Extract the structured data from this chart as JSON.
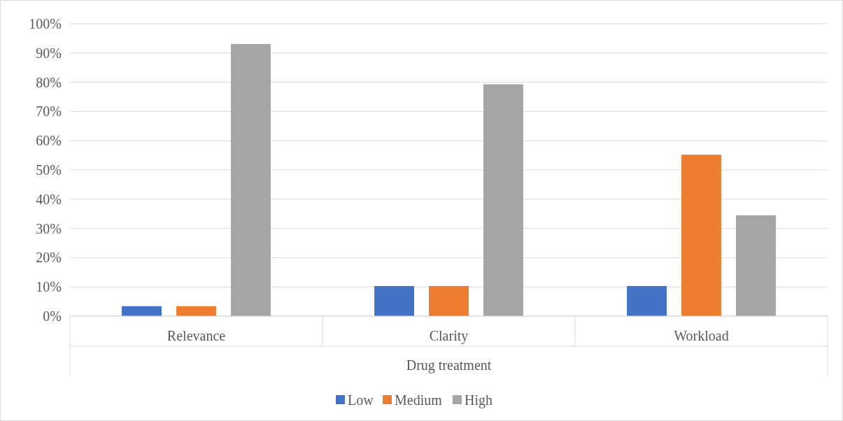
{
  "chart_data": {
    "type": "bar",
    "xlabel": "Drug treatment",
    "categories": [
      "Relevance",
      "Clarity",
      "Workload"
    ],
    "series": [
      {
        "name": "Low",
        "color": "#4472c4",
        "values": [
          3.4,
          10.3,
          10.3
        ]
      },
      {
        "name": "Medium",
        "color": "#ed7d31",
        "values": [
          3.4,
          10.3,
          55.2
        ]
      },
      {
        "name": "High",
        "color": "#a5a5a5",
        "values": [
          93.1,
          79.3,
          34.5
        ]
      }
    ],
    "ylim": [
      0,
      100
    ],
    "yticks": [
      {
        "value": 0,
        "label": "0%"
      },
      {
        "value": 10,
        "label": "10%"
      },
      {
        "value": 20,
        "label": "20%"
      },
      {
        "value": 30,
        "label": "30%"
      },
      {
        "value": 40,
        "label": "40%"
      },
      {
        "value": 50,
        "label": "50%"
      },
      {
        "value": 60,
        "label": "60%"
      },
      {
        "value": 70,
        "label": "70%"
      },
      {
        "value": 80,
        "label": "80%"
      },
      {
        "value": 90,
        "label": "90%"
      },
      {
        "value": 100,
        "label": "100%"
      }
    ],
    "grid": "y",
    "legend": "bottom"
  }
}
